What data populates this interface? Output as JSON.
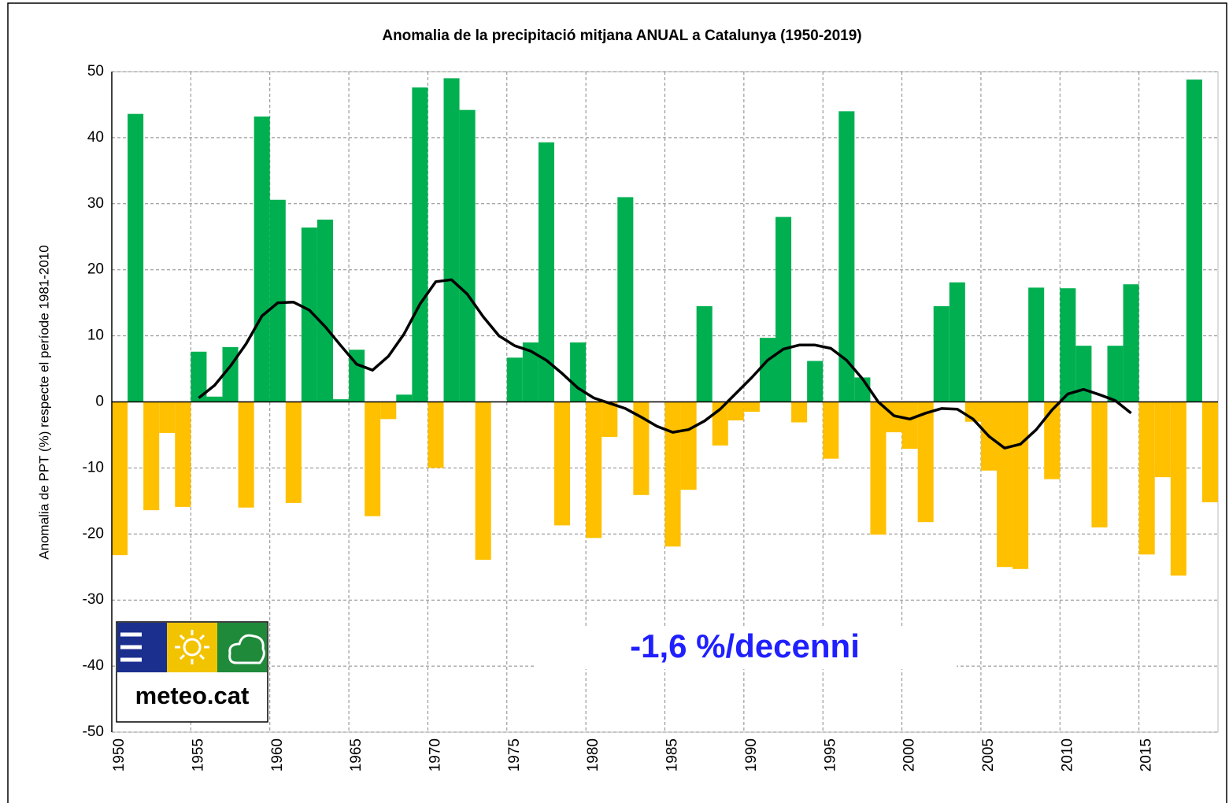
{
  "chart_data": {
    "type": "bar",
    "title": "Anomalia de la precipitació mitjana ANUAL a Catalunya (1950-2019)",
    "y_label": "Anomalia de PPT (%) respecte el període 1981-2010",
    "annotation": "-1,6 %/decenni",
    "logo": "meteo.cat",
    "categories": [
      "1950",
      null,
      null,
      null,
      null,
      "1955",
      null,
      null,
      null,
      null,
      "1960",
      null,
      null,
      null,
      null,
      "1965",
      null,
      null,
      null,
      null,
      "1970",
      null,
      null,
      null,
      null,
      "1975",
      null,
      null,
      null,
      null,
      "1980",
      null,
      null,
      null,
      null,
      "1985",
      null,
      null,
      null,
      null,
      "1990",
      null,
      null,
      null,
      null,
      "1995",
      null,
      null,
      null,
      null,
      "2000",
      null,
      null,
      null,
      null,
      "2005",
      null,
      null,
      null,
      null,
      "2010",
      null,
      null,
      null,
      null,
      "2015",
      null,
      null,
      null,
      null
    ],
    "series": [
      {
        "type": "bar",
        "color": "#00b050",
        "negative_color": "#ffc000",
        "values": [
          -23.2,
          43.6,
          -16.4,
          -4.7,
          -15.9,
          7.6,
          0.8,
          8.3,
          -16,
          43.2,
          30.6,
          -15.3,
          26.4,
          27.6,
          0.4,
          7.9,
          -17.3,
          -2.6,
          1.1,
          47.6,
          -10,
          49,
          44.2,
          -23.9,
          0,
          6.7,
          9,
          39.3,
          -18.7,
          9,
          -20.6,
          -5.3,
          31,
          -14.1,
          0,
          -21.9,
          -13.3,
          14.5,
          -6.6,
          -2.8,
          -1.5,
          9.7,
          28,
          -3.1,
          6.2,
          -8.6,
          44,
          3.7,
          -20.1,
          -4.6,
          -7.1,
          -18.2,
          14.5,
          18.1,
          -3,
          -10.4,
          -25,
          -25.3,
          17.3,
          -11.7,
          17.2,
          8.5,
          -19,
          8.5,
          17.8,
          -23.1,
          -11.4,
          -26.3,
          48.8,
          -15.2
        ]
      },
      {
        "type": "line",
        "color": "#000000",
        "values": [
          null,
          null,
          null,
          null,
          null,
          0.6,
          2.5,
          5.4,
          8.8,
          13,
          15,
          15.1,
          13.9,
          11.4,
          8.5,
          5.7,
          4.8,
          6.9,
          10.3,
          14.8,
          18.2,
          18.5,
          16.3,
          12.9,
          10,
          8.5,
          7.7,
          6.3,
          4.3,
          2.1,
          0.6,
          -0.2,
          -1,
          -2.3,
          -3.7,
          -4.6,
          -4.2,
          -2.9,
          -1.1,
          1.3,
          3.7,
          6.3,
          8,
          8.6,
          8.6,
          8.1,
          6.3,
          3.5,
          0,
          -2.1,
          -2.6,
          -1.7,
          -1,
          -1.1,
          -2.6,
          -5.2,
          -7,
          -6.4,
          -4.2,
          -1.2,
          1.2,
          1.9,
          1.1,
          0.2,
          -1.7,
          null,
          null,
          null,
          null,
          null
        ]
      }
    ],
    "ylim": [
      -50,
      50
    ],
    "yticks": [
      -50,
      -40,
      -30,
      -20,
      -10,
      0,
      10,
      20,
      30,
      40,
      50
    ],
    "grid": true
  }
}
